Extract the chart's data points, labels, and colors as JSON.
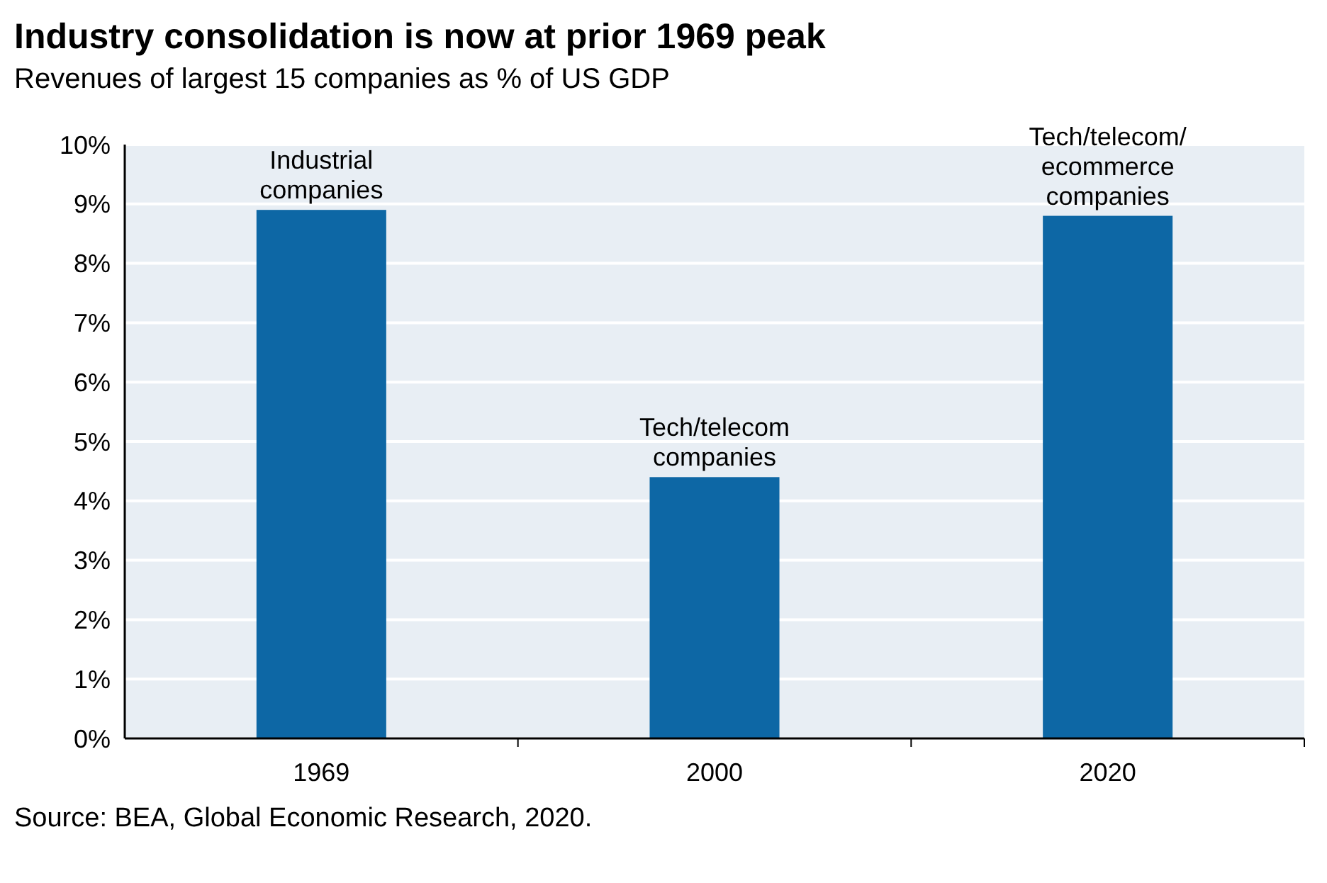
{
  "chart_data": {
    "type": "bar",
    "title": "Industry consolidation is now at prior 1969 peak",
    "subtitle": "Revenues of largest 15 companies as % of US GDP",
    "categories": [
      "1969",
      "2000",
      "2020"
    ],
    "values": [
      8.9,
      4.4,
      8.8
    ],
    "color": "#0d67a5",
    "ylim": [
      0,
      10
    ],
    "yticks": [
      {
        "value": 0,
        "label": "0%"
      },
      {
        "value": 1,
        "label": "1%"
      },
      {
        "value": 2,
        "label": "2%"
      },
      {
        "value": 3,
        "label": "3%"
      },
      {
        "value": 4,
        "label": "4%"
      },
      {
        "value": 5,
        "label": "5%"
      },
      {
        "value": 6,
        "label": "6%"
      },
      {
        "value": 7,
        "label": "7%"
      },
      {
        "value": 8,
        "label": "8%"
      },
      {
        "value": 9,
        "label": "9%"
      },
      {
        "value": 10,
        "label": "10%"
      }
    ],
    "grid": "y",
    "annotations": [
      {
        "text": "Industrial\ncompanies",
        "x": "1969",
        "y": 8.9
      },
      {
        "text": "Tech/telecom\ncompanies",
        "x": "2000",
        "y": 4.4
      },
      {
        "text": "Tech/telecom/\necommerce\ncompanies",
        "x": "2020",
        "y": 8.8
      },
      "Source: BEA, Global Economic Research, 2020."
    ]
  }
}
